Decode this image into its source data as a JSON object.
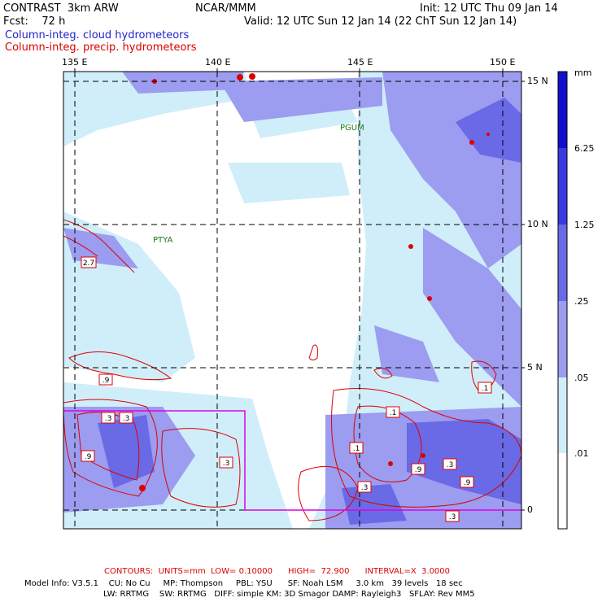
{
  "header": {
    "left1": "CONTRAST  3km ARW",
    "center1": "NCAR/MMM",
    "right1": "Init: 12 UTC Thu 09 Jan 14",
    "left2": "Fcst:    72 h",
    "right2": "Valid: 12 UTC Sun 12 Jan 14 (22 ChT Sun 12 Jan 14)",
    "field1": "Column-integ. cloud hydrometeors",
    "field2": "Column-integ. precip. hydrometeors"
  },
  "lon_ticks": [
    "135 E",
    "140 E",
    "145 E",
    "150 E"
  ],
  "lat_ticks": [
    "15 N",
    "10 N",
    "5 N",
    "0"
  ],
  "places": {
    "pgum": "PGUM",
    "ptya": "PTYA"
  },
  "colorbar": {
    "unit": "mm",
    "labels": [
      "6.25",
      "1.25",
      ".25",
      ".05",
      ".01"
    ],
    "colors": [
      "#1010cc",
      "#3a3ae0",
      "#6a6ae6",
      "#9c9cf0",
      "#cfeefa",
      "#ffffff"
    ]
  },
  "contour_labels": [
    "2.7",
    ".9",
    ".3",
    ".3",
    ".9",
    ".3",
    ".1",
    ".1",
    ".3",
    ".9",
    ".3",
    ".9",
    ".1",
    ".3"
  ],
  "footer": {
    "contours": "CONTOURS:  UNITS=mm  LOW= 0.10000      HIGH=  72.900      INTERVAL=X  3.0000",
    "model1": "Model Info: V3.5.1    CU: No Cu     MP: Thompson     PBL: YSU      SF: Noah LSM     3.0 km   39 levels   18 sec",
    "model2": "LW: RRTMG    SW: RRTMG   DIFF: simple KM: 3D Smagor DAMP: Rayleigh3   SFLAY: Rev MM5"
  }
}
